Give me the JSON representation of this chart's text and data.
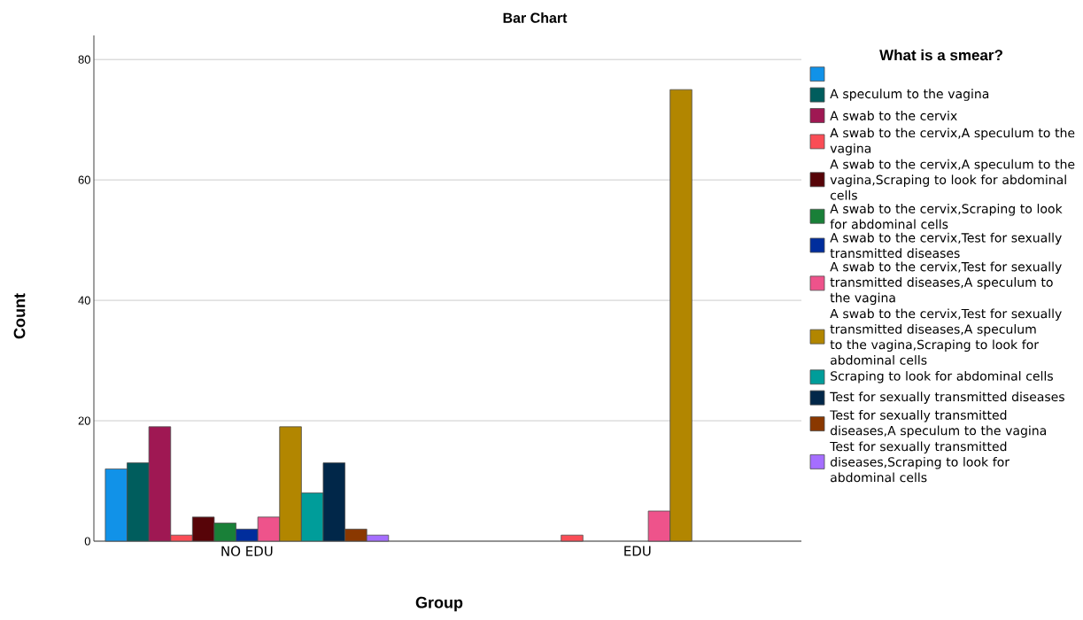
{
  "chart_data": {
    "type": "bar",
    "title": "Bar Chart",
    "xlabel": "Group",
    "ylabel": "Count",
    "legend_title": "What is a smear?",
    "categories": [
      "NO EDU",
      "EDU"
    ],
    "ylim": [
      0,
      84
    ],
    "yticks": [
      0,
      20,
      40,
      60,
      80
    ],
    "grid": "y",
    "legend": "right",
    "series": [
      {
        "color": "#1192e8",
        "values": [
          12,
          null
        ]
      },
      {
        "name": "A speculum to the vagina",
        "color": "#005d5d",
        "values": [
          13,
          null
        ]
      },
      {
        "name": "A swab to the cervix",
        "color": "#9f1853",
        "values": [
          19,
          null
        ]
      },
      {
        "name": "A swab to the cervix,A speculum to the vagina",
        "color": "#fa4d56",
        "values": [
          1,
          1
        ]
      },
      {
        "name": "A swab to the cervix,A speculum to the vagina,Scraping to look for abdominal cells",
        "color": "#570408",
        "values": [
          4,
          null
        ]
      },
      {
        "name": "A swab to the cervix,Scraping to look for abdominal cells",
        "color": "#198038",
        "values": [
          3,
          null
        ]
      },
      {
        "name": "A swab to the cervix,Test for sexually transmitted diseases",
        "color": "#002d9c",
        "values": [
          2,
          null
        ]
      },
      {
        "name": "A swab to the cervix,Test for sexually transmitted diseases,A speculum to the vagina",
        "color": "#ee538b",
        "values": [
          4,
          5
        ]
      },
      {
        "name": "A swab to the cervix,Test for sexually transmitted diseases,A speculum to the vagina,Scraping to look for abdominal cells",
        "color": "#b28600",
        "values": [
          19,
          75
        ]
      },
      {
        "name": "Scraping to look for abdominal cells",
        "color": "#009d9a",
        "values": [
          8,
          null
        ]
      },
      {
        "name": "Test for sexually transmitted diseases",
        "color": "#012749",
        "values": [
          13,
          null
        ]
      },
      {
        "name": "Test for sexually transmitted diseases,A speculum to the vagina",
        "color": "#8a3800",
        "values": [
          2,
          null
        ]
      },
      {
        "name": "Test for sexually transmitted diseases,Scraping to look for abdominal cells",
        "color": "#a56eff",
        "values": [
          1,
          null
        ]
      }
    ]
  }
}
